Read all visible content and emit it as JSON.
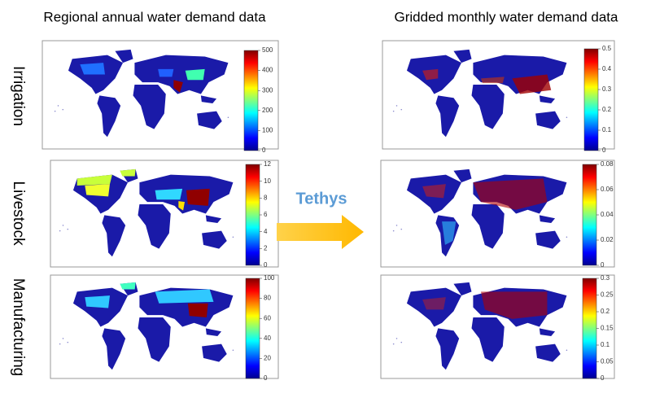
{
  "titles": {
    "left": "Regional annual water demand data",
    "right": "Gridded monthly water demand data"
  },
  "arrow_label": "Tethys",
  "rows": [
    {
      "label": "Irrigation",
      "left_ticks": [
        "0",
        "100",
        "200",
        "300",
        "400",
        "500"
      ],
      "right_ticks": [
        "0",
        "0.1",
        "0.2",
        "0.3",
        "0.4",
        "0.5"
      ]
    },
    {
      "label": "Livestock",
      "left_ticks": [
        "0",
        "2",
        "4",
        "6",
        "8",
        "10",
        "12"
      ],
      "right_ticks": [
        "0",
        "0.02",
        "0.04",
        "0.06",
        "0.08"
      ]
    },
    {
      "label": "Manufacturing",
      "left_ticks": [
        "0",
        "20",
        "40",
        "60",
        "80",
        "100"
      ],
      "right_ticks": [
        "0",
        "0.05",
        "0.1",
        "0.15",
        "0.2",
        "0.25",
        "0.3"
      ]
    }
  ]
}
